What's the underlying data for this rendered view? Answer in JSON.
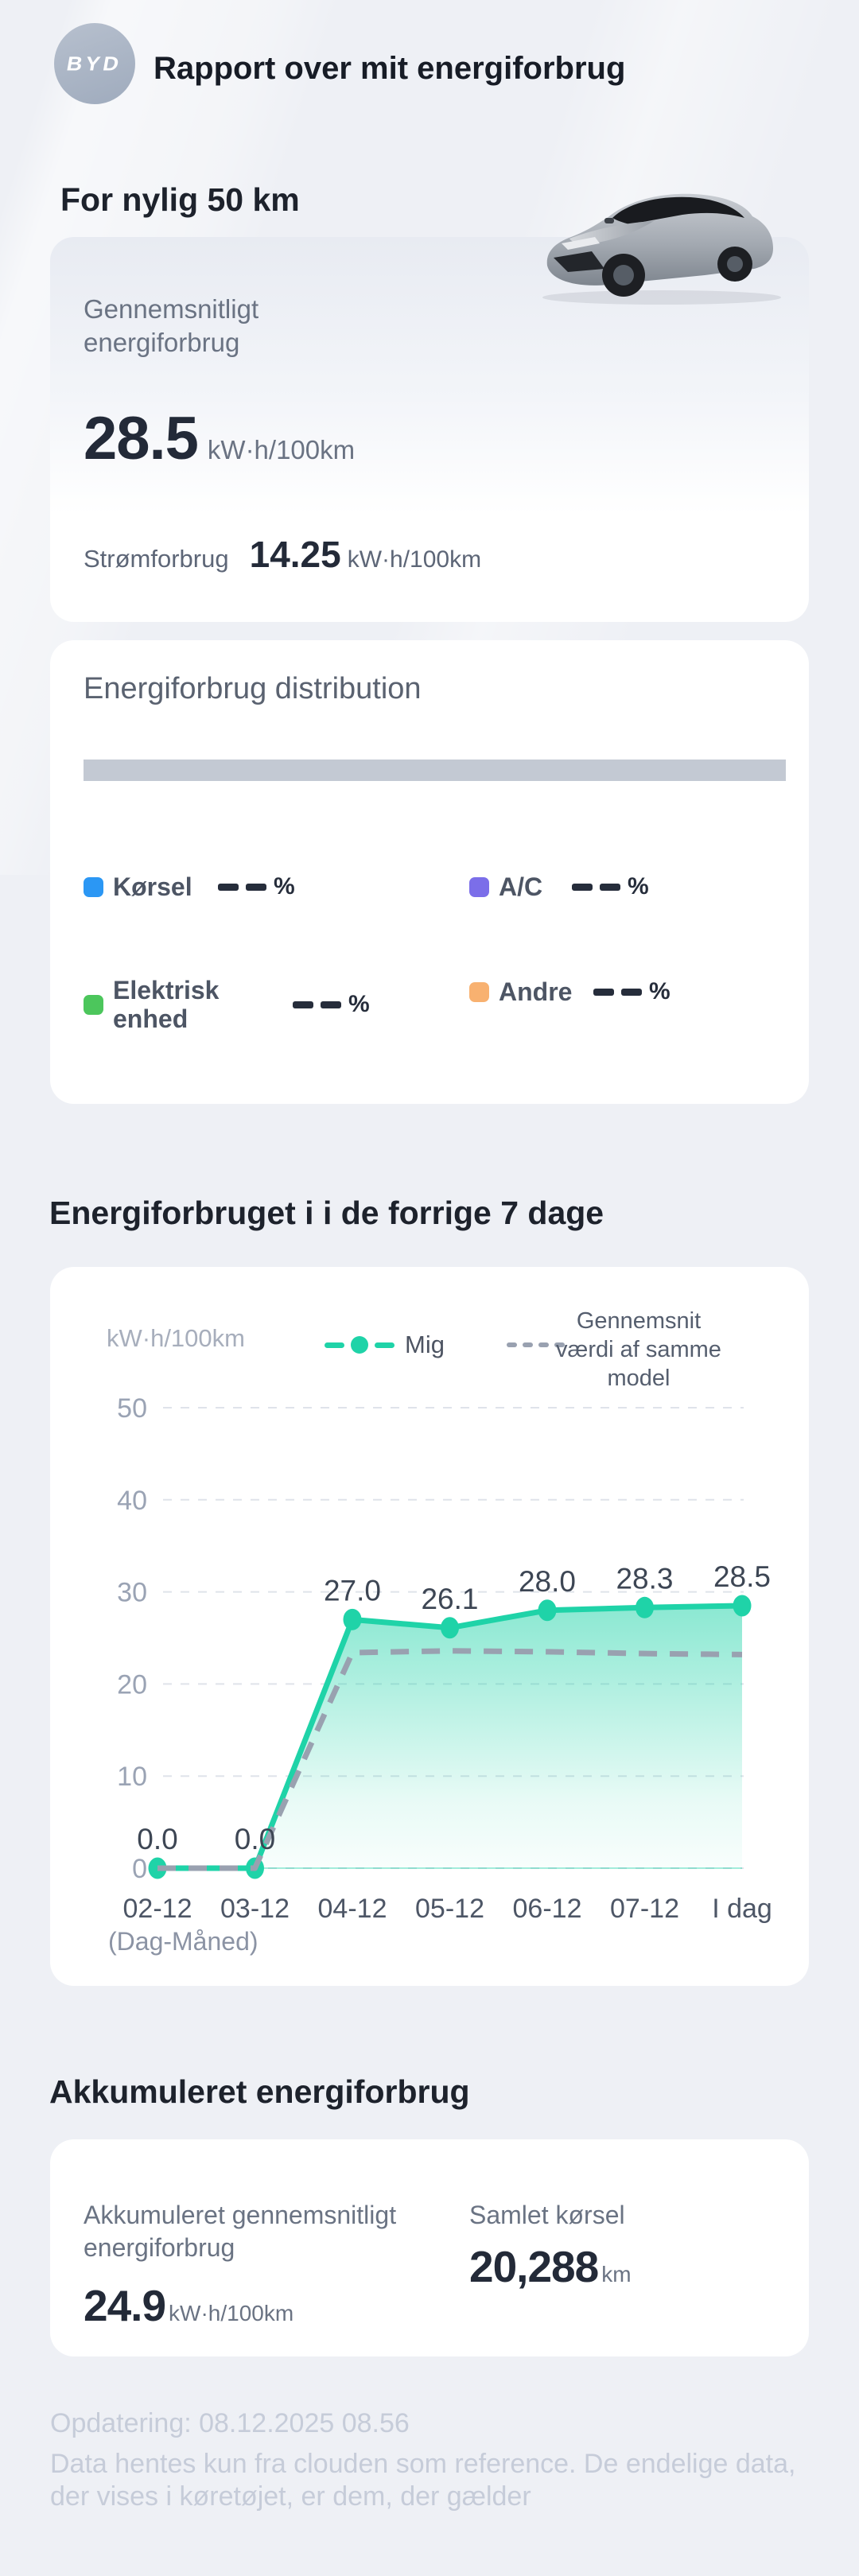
{
  "header": {
    "logo_text": "BYD",
    "title": "Rapport over mit energiforbrug"
  },
  "recent": {
    "title": "For nylig 50 km",
    "avg_label": "Gennemsnitligt energiforbrug",
    "avg_value": "28.5",
    "avg_unit": "kW·h/100km",
    "power_label": "Strømforbrug",
    "power_value": "14.25",
    "power_unit": "kW·h/100km"
  },
  "distribution": {
    "title": "Energiforbrug distribution",
    "bar_color": "#c3c9d3",
    "items": [
      {
        "label": "Kørsel",
        "value": "--",
        "unit": "%",
        "color": "#2b97f4"
      },
      {
        "label": "A/C",
        "value": "--",
        "unit": "%",
        "color": "#7b6ee9"
      },
      {
        "label": "Elektrisk enhed",
        "value": "--",
        "unit": "%",
        "color": "#4cc65c"
      },
      {
        "label": "Andre",
        "value": "--",
        "unit": "%",
        "color": "#f8b170"
      }
    ]
  },
  "weekly": {
    "title": "Energiforbruget i i de forrige 7 dage"
  },
  "chart_data": {
    "type": "line",
    "title": "Energiforbruget i i de forrige 7 dage",
    "categories": [
      "02-12",
      "03-12",
      "04-12",
      "05-12",
      "06-12",
      "07-12",
      "I dag"
    ],
    "series": [
      {
        "name": "Mig",
        "color": "#1fd3a8",
        "style": "solid-with-dots-and-area",
        "values": [
          0.0,
          0.0,
          27.0,
          26.1,
          28.0,
          28.3,
          28.5
        ],
        "point_labels": [
          "0.0",
          "0.0",
          "27.0",
          "26.1",
          "28.0",
          "28.3",
          "28.5"
        ]
      },
      {
        "name": "Gennemsnit værdi af samme model",
        "color": "#99a1b0",
        "style": "dashed",
        "values": [
          0.0,
          0.0,
          23.4,
          23.6,
          23.5,
          23.3,
          23.2
        ],
        "values_estimated": true
      }
    ],
    "ylabel": "kW·h/100km",
    "xlabel": "(Dag-Måned)",
    "yticks": [
      0,
      10,
      20,
      30,
      40,
      50
    ],
    "ylim": [
      0,
      55
    ],
    "grid": "dashed-horizontal",
    "legend_position": "top",
    "area_fill": true
  },
  "accumulated": {
    "title": "Akkumuleret energiforbrug",
    "avg_label": "Akkumuleret gennemsnitligt energiforbrug",
    "avg_value": "24.9",
    "avg_unit": "kW·h/100km",
    "total_label": "Samlet kørsel",
    "total_value": "20,288",
    "total_unit": "km"
  },
  "footer": {
    "updated": "Opdatering: 08.12.2025 08.56",
    "disclaimer": "Data hentes kun fra clouden som reference. De endelige data, der vises i køretøjet, er dem, der gælder"
  }
}
